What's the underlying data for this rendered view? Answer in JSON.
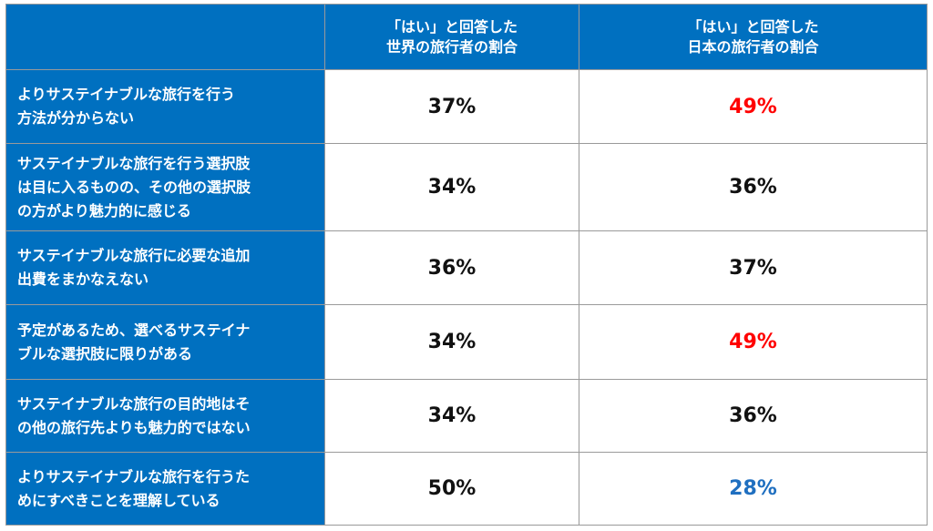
{
  "header": {
    "corner": "",
    "world": [
      "「はい」と回答した",
      "世界の旅行者の割合"
    ],
    "japan": [
      "「はい」と回答した",
      "日本の旅行者の割合"
    ]
  },
  "rows": [
    {
      "label": [
        "よりサステイナブルな旅行を行う",
        "方法が分からない"
      ],
      "world": "37%",
      "japan": "49%",
      "japan_color": "#ff0000"
    },
    {
      "label": [
        "サステイナブルな旅行を行う選択肢",
        "は目に入るものの、その他の選択肢",
        "の方がより魅力的に感じる"
      ],
      "world": "34%",
      "japan": "36%",
      "japan_color": "#111111"
    },
    {
      "label": [
        "サステイナブルな旅行に必要な追加",
        "出費をまかなえない"
      ],
      "world": "36%",
      "japan": "37%",
      "japan_color": "#111111"
    },
    {
      "label": [
        "予定があるため、選べるサステイナ",
        "ブルな選択肢に限りがある"
      ],
      "world": "34%",
      "japan": "49%",
      "japan_color": "#ff0000"
    },
    {
      "label": [
        "サステイナブルな旅行の目的地はそ",
        "の他の旅行先よりも魅力的ではない"
      ],
      "world": "34%",
      "japan": "36%",
      "japan_color": "#111111"
    },
    {
      "label": [
        "よりサステイナブルな旅行を行うた",
        "めにすべきことを理解している"
      ],
      "world": "50%",
      "japan": "28%",
      "japan_color": "#1f6fc0"
    }
  ],
  "colors": {
    "header_bg": "#0070c0",
    "label_bg": "#0070c0",
    "border": "#9a9a9a"
  }
}
